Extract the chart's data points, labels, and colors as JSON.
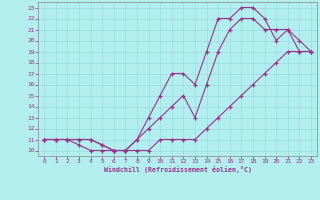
{
  "xlabel": "Windchill (Refroidissement éolien,°C)",
  "bg_color": "#b2eeee",
  "grid_color": "#99dddd",
  "line_color": "#993388",
  "xlim": [
    -0.5,
    23.5
  ],
  "ylim": [
    9.5,
    23.5
  ],
  "xticks": [
    0,
    1,
    2,
    3,
    4,
    5,
    6,
    7,
    8,
    9,
    10,
    11,
    12,
    13,
    14,
    15,
    16,
    17,
    18,
    19,
    20,
    21,
    22,
    23
  ],
  "yticks": [
    10,
    11,
    12,
    13,
    14,
    15,
    16,
    17,
    18,
    19,
    20,
    21,
    22,
    23
  ],
  "line1_x": [
    0,
    1,
    2,
    3,
    4,
    5,
    6,
    7,
    8,
    9,
    10,
    11,
    12,
    13,
    14,
    15,
    16,
    17,
    18,
    19,
    20,
    21,
    22,
    23
  ],
  "line1_y": [
    11,
    11,
    11,
    10.5,
    10,
    10,
    10,
    10,
    10,
    10,
    11,
    11,
    11,
    11,
    12,
    13,
    14,
    15,
    16,
    17,
    18,
    19,
    19,
    19
  ],
  "line2_x": [
    0,
    1,
    2,
    3,
    4,
    5,
    6,
    7,
    8,
    9,
    10,
    11,
    12,
    13,
    14,
    15,
    16,
    17,
    18,
    19,
    20,
    21,
    22,
    23
  ],
  "line2_y": [
    11,
    11,
    11,
    11,
    11,
    10.5,
    10,
    10,
    11,
    12,
    13,
    14,
    15,
    13,
    16,
    19,
    21,
    22,
    22,
    21,
    21,
    21,
    19,
    19
  ],
  "line3_x": [
    0,
    1,
    2,
    3,
    4,
    5,
    6,
    7,
    8,
    9,
    10,
    11,
    12,
    13,
    14,
    15,
    16,
    17,
    18,
    19,
    20,
    21,
    22,
    23
  ],
  "line3_y": [
    11,
    11,
    11,
    11,
    11,
    10.5,
    10,
    10,
    11,
    13,
    15,
    17,
    17,
    16,
    19,
    22,
    22,
    23,
    23,
    22,
    20,
    21,
    20,
    19
  ]
}
